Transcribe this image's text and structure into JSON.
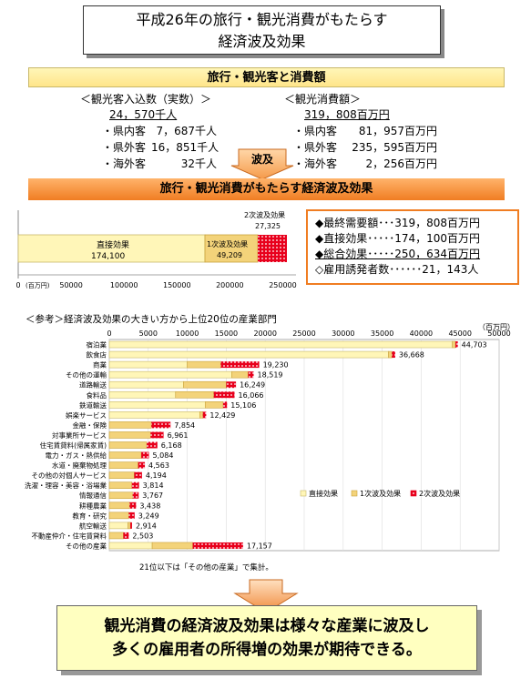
{
  "title": {
    "line1": "平成26年の旅行・観光消費がもたらす",
    "line2": "経済波及効果"
  },
  "section1": {
    "label": "旅行・観光客と消費額"
  },
  "visitors": {
    "heading": "＜観光客入込数（実数）＞",
    "total": "24，570千人",
    "rows": [
      {
        "label": "・県内客",
        "value": "7，687千人"
      },
      {
        "label": "・県外客",
        "value": "16，851千人"
      },
      {
        "label": "・海外客",
        "value": "32千人"
      }
    ]
  },
  "spending": {
    "heading": "＜観光消費額＞",
    "total": "319，808百万円",
    "rows": [
      {
        "label": "・県内客",
        "value": "81，957百万円"
      },
      {
        "label": "・県外客",
        "value": "235，595百万円"
      },
      {
        "label": "・海外客",
        "value": "2，256百万円"
      }
    ]
  },
  "wave_arrow": {
    "label": "波及"
  },
  "section2": {
    "label": "旅行・観光消費がもたらす経済波及効果"
  },
  "summary_bar": {
    "labels": {
      "direct": "直接効果",
      "direct_value": "174,100",
      "indirect1": "1次波及効果",
      "indirect1_value": "49,209",
      "indirect2": "2次波及効果",
      "indirect2_value": "27,325",
      "unit": "(百万円)"
    },
    "ticks": [
      "0",
      "50000",
      "100000",
      "150000",
      "200000",
      "250000"
    ]
  },
  "notes": [
    "◆最終需要額･･･319，808百万円",
    "◆直接効果･････174，100百万円",
    "◆総合効果･････250，634百万円",
    "◇雇用誘発者数･･････21，143人"
  ],
  "colors": {
    "direct": "#fff6b8",
    "indirect1": "#e8a800",
    "indirect2": "#e8001c",
    "orange": "#f07d22"
  },
  "chart_data": {
    "type": "bar",
    "title": "＜参考＞経済波及効果の大きい方から上位20位の産業部門",
    "unit": "（百万円）",
    "xlim": [
      0,
      50000
    ],
    "ticks": [
      "0",
      "5000",
      "10000",
      "15000",
      "20000",
      "25000",
      "30000",
      "35000",
      "40000",
      "45000",
      "50000"
    ],
    "legend": [
      "直接効果",
      "1次波及効果",
      "2次波及効果"
    ],
    "categories": [
      "宿泊業",
      "飲食店",
      "商業",
      "その他の運輸",
      "道路輸送",
      "食料品",
      "鉄道輸送",
      "娯楽サービス",
      "金融・保険",
      "対事業所サービス",
      "住宅賃貸料(帰属家賃)",
      "電力・ガス・熱供給",
      "水道・廃棄物処理",
      "その他の対個人サービス",
      "洗濯・理容・美容・浴場業",
      "情報通信",
      "耕種農業",
      "教育・研究",
      "航空輸送",
      "不動産仲介・住宅賃貸料",
      "その他の産業"
    ],
    "totals": [
      "44,703",
      "36,668",
      "19,230",
      "18,519",
      "16,249",
      "16,066",
      "15,106",
      "12,429",
      "7,854",
      "6,961",
      "6,168",
      "5,084",
      "4,563",
      "4,194",
      "3,814",
      "3,767",
      "3,438",
      "3,249",
      "2,914",
      "2,503",
      "17,157"
    ],
    "series": [
      {
        "name": "直接効果",
        "values": [
          44000,
          35800,
          10000,
          15700,
          9500,
          8500,
          12300,
          11600,
          0,
          0,
          0,
          0,
          0,
          0,
          0,
          0,
          0,
          0,
          2400,
          0,
          5500
        ]
      },
      {
        "name": "1次波及効果",
        "values": [
          400,
          450,
          4300,
          2100,
          5500,
          4900,
          2300,
          400,
          5400,
          5300,
          4800,
          4100,
          3700,
          3200,
          2900,
          3000,
          2600,
          2500,
          300,
          1800,
          5200
        ]
      },
      {
        "name": "2次波及効果",
        "values": [
          303,
          418,
          4930,
          719,
          1249,
          2666,
          506,
          429,
          2454,
          1661,
          1368,
          984,
          863,
          994,
          914,
          767,
          838,
          749,
          214,
          703,
          6457
        ]
      }
    ],
    "footnote": "21位以下は「その他の産業」で集計。"
  },
  "arrow_down": {
    "name": "down-arrow"
  },
  "conclusion": {
    "line1": "観光消費の経済波及効果は様々な産業に波及し",
    "line2": "多くの雇用者の所得増の効果が期待できる。"
  }
}
